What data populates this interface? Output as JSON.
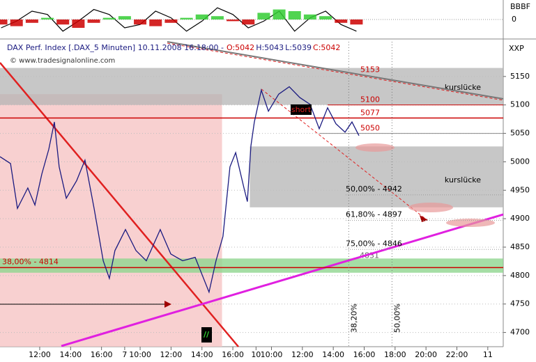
{
  "chart_data": [
    {
      "type": "oscillator",
      "label": "BBBF",
      "ylim": [
        -1,
        1
      ],
      "yticks": [
        0
      ],
      "xlim": [
        0.43,
        33.0
      ],
      "x": [
        0.5,
        1.5,
        2.5,
        3.5,
        4.5,
        5.5,
        6.5,
        7.5,
        8.5,
        9.5,
        10.5,
        11.5,
        12.5,
        13.5,
        14.5,
        15.5,
        16.5,
        17.5,
        18.5,
        19.5,
        20.5,
        21.5,
        22.5,
        23.5
      ],
      "series": [
        {
          "kind": "line",
          "color": "#000000",
          "values": [
            -0.5,
            -0.1,
            0.5,
            0.3,
            -0.7,
            -0.1,
            0.6,
            0.3,
            -0.5,
            -0.3,
            0.5,
            0.1,
            -0.7,
            -0.1,
            0.7,
            0.3,
            -0.5,
            -0.1,
            0.5,
            -0.7,
            0.1,
            0.5,
            -0.3,
            -0.7
          ]
        },
        {
          "kind": "bar",
          "colors": [
            "#33cc33",
            "#cc0000"
          ],
          "values": [
            -0.3,
            -0.4,
            -0.2,
            0.1,
            -0.3,
            -0.5,
            -0.2,
            0.1,
            0.2,
            -0.3,
            -0.4,
            -0.2,
            0.1,
            0.3,
            0.2,
            -0.1,
            -0.3,
            0.4,
            0.6,
            0.5,
            0.3,
            0.2,
            -0.2,
            -0.3
          ]
        }
      ]
    },
    {
      "type": "line",
      "title": "DAX Perf. Index [.DAX_5 Minuten] 10.11.2008 16:18:00 -",
      "ohlc": [
        {
          "label": "O:5042",
          "color": "#cc0000"
        },
        {
          "label": "H:5043",
          "color": "#1a1a80"
        },
        {
          "label": "L:5039",
          "color": "#1a1a80"
        },
        {
          "label": "C:5042",
          "color": "#cc0000"
        }
      ],
      "watermark": "© www.tradesignalonline.com",
      "y_label": "XXP",
      "color": "#1a1a80",
      "xlim": [
        0.43,
        33.0
      ],
      "ylim": [
        4675,
        5211
      ],
      "xticks": [
        {
          "value": 3,
          "label": "12:00"
        },
        {
          "value": 5,
          "label": "14:00"
        },
        {
          "value": 7,
          "label": "16:00"
        },
        {
          "value": 8.5,
          "label": "7"
        },
        {
          "value": 9.5,
          "label": "10:00"
        },
        {
          "value": 11.5,
          "label": "12:00"
        },
        {
          "value": 13.5,
          "label": "14:00"
        },
        {
          "value": 15.5,
          "label": "16:00"
        },
        {
          "value": 17,
          "label": "10"
        },
        {
          "value": 18,
          "label": "10:00"
        },
        {
          "value": 20,
          "label": "12:00"
        },
        {
          "value": 22,
          "label": "14:00"
        },
        {
          "value": 24,
          "label": "16:00"
        },
        {
          "value": 26,
          "label": "18:00"
        },
        {
          "value": 28,
          "label": "20:00"
        },
        {
          "value": 30,
          "label": "22:00"
        },
        {
          "value": 32,
          "label": "11"
        }
      ],
      "yticks": [
        4700,
        4750,
        4800,
        4850,
        4900,
        4950,
        5000,
        5050,
        5100,
        5150
      ],
      "grid": true,
      "x": [
        0.43,
        1.11,
        1.56,
        2.23,
        2.69,
        3.14,
        3.59,
        3.95,
        4.26,
        4.72,
        5.39,
        5.93,
        6.52,
        7.11,
        7.51,
        7.87,
        8.55,
        9.23,
        9.9,
        10.8,
        11.48,
        12.25,
        13.06,
        13.96,
        14.41,
        14.86,
        15.31,
        15.68,
        16.22,
        16.44,
        16.67,
        16.89,
        17.34,
        17.8,
        18.47,
        19.15,
        19.83,
        20.5,
        21.09,
        21.63,
        22.17,
        22.76,
        23.21,
        23.66
      ],
      "values": [
        5009,
        4997,
        4918,
        4954,
        4924,
        4979,
        5022,
        5070,
        4991,
        4936,
        4967,
        5003,
        4918,
        4826,
        4795,
        4844,
        4881,
        4844,
        4826,
        4881,
        4838,
        4826,
        4832,
        4771,
        4826,
        4869,
        4991,
        5016,
        4954,
        4930,
        5028,
        5070,
        5126,
        5089,
        5119,
        5132,
        5113,
        5101,
        5058,
        5095,
        5067,
        5052,
        5070,
        5046
      ],
      "gaps": [
        {
          "label": "kurslücke",
          "range": [
            5100,
            5165
          ],
          "from": 0.43
        },
        {
          "label": "kurslücke",
          "range": [
            4920,
            5027
          ],
          "from": 16.6
        }
      ],
      "zones": [
        {
          "range": [
            4675,
            5119
          ],
          "x": [
            0.43,
            14.8
          ],
          "color": "#f6c4c4"
        },
        {
          "range": [
            4805,
            4830
          ],
          "x": [
            0.43,
            33.0
          ],
          "color": "#8fd68f",
          "label": 4831
        }
      ],
      "levels": [
        5153,
        5100,
        5077,
        5050
      ],
      "fib_levels": [
        {
          "value": 4942,
          "label": "50,00% - 4942"
        },
        {
          "value": 4897,
          "label": "61,80% - 4897"
        },
        {
          "value": 4846,
          "label": "75,00% - 4846"
        },
        {
          "value": 4814,
          "label": "38,00% - 4814"
        }
      ],
      "retracements": [
        {
          "value": 23.0,
          "label": "38,20%"
        },
        {
          "value": 25.8,
          "label": "50,00%"
        }
      ],
      "signal": "short",
      "marker": "//"
    }
  ]
}
